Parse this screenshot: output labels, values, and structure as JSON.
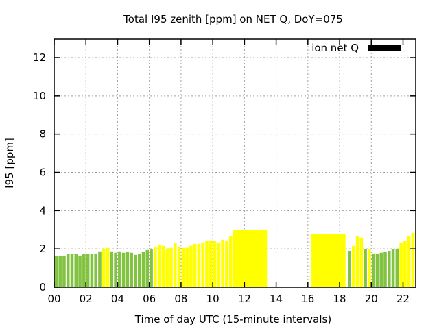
{
  "chart_data": {
    "type": "bar",
    "title": "Total I95 zenith [ppm] on NET Q, DoY=075",
    "xlabel": "Time of day UTC (15-minute intervals)",
    "ylabel": "I95 [ppm]",
    "xlim": [
      0,
      22.8
    ],
    "ylim": [
      0,
      13
    ],
    "xticks": [
      0,
      2,
      4,
      6,
      8,
      10,
      12,
      14,
      16,
      18,
      20,
      22
    ],
    "xtick_labels": [
      "00",
      "02",
      "04",
      "06",
      "08",
      "10",
      "12",
      "14",
      "16",
      "18",
      "20",
      "22"
    ],
    "yticks": [
      0,
      2,
      4,
      6,
      8,
      10,
      12
    ],
    "ytick_labels": [
      "0",
      "2",
      "4",
      "6",
      "8",
      "10",
      "12"
    ],
    "grid": true,
    "legend": {
      "label": "ion net Q",
      "placement": "top-right",
      "color": "#000000"
    },
    "colors": {
      "g": "#82c341",
      "y": "#ffff00"
    },
    "bars": [
      {
        "t": 0,
        "v": 1.62,
        "c": "g"
      },
      {
        "t": 0.25,
        "v": 1.62,
        "c": "g"
      },
      {
        "t": 0.5,
        "v": 1.65,
        "c": "g"
      },
      {
        "t": 0.75,
        "v": 1.72,
        "c": "g"
      },
      {
        "t": 1,
        "v": 1.72,
        "c": "g"
      },
      {
        "t": 1.25,
        "v": 1.72,
        "c": "g"
      },
      {
        "t": 1.5,
        "v": 1.65,
        "c": "g"
      },
      {
        "t": 1.75,
        "v": 1.72,
        "c": "g"
      },
      {
        "t": 2,
        "v": 1.72,
        "c": "g"
      },
      {
        "t": 2.25,
        "v": 1.72,
        "c": "g"
      },
      {
        "t": 2.5,
        "v": 1.76,
        "c": "g"
      },
      {
        "t": 2.75,
        "v": 1.87,
        "c": "g"
      },
      {
        "t": 3,
        "v": 2.01,
        "c": "y"
      },
      {
        "t": 3.25,
        "v": 2.05,
        "c": "y"
      },
      {
        "t": 3.5,
        "v": 1.87,
        "c": "g"
      },
      {
        "t": 3.75,
        "v": 1.8,
        "c": "g"
      },
      {
        "t": 4,
        "v": 1.87,
        "c": "g"
      },
      {
        "t": 4.25,
        "v": 1.8,
        "c": "g"
      },
      {
        "t": 4.5,
        "v": 1.83,
        "c": "g"
      },
      {
        "t": 4.75,
        "v": 1.8,
        "c": "g"
      },
      {
        "t": 5,
        "v": 1.69,
        "c": "g"
      },
      {
        "t": 5.25,
        "v": 1.72,
        "c": "g"
      },
      {
        "t": 5.5,
        "v": 1.83,
        "c": "g"
      },
      {
        "t": 5.75,
        "v": 1.94,
        "c": "g"
      },
      {
        "t": 6,
        "v": 1.98,
        "c": "g"
      },
      {
        "t": 6.25,
        "v": 2.08,
        "c": "y"
      },
      {
        "t": 6.5,
        "v": 2.19,
        "c": "y"
      },
      {
        "t": 6.75,
        "v": 2.16,
        "c": "y"
      },
      {
        "t": 7,
        "v": 2.01,
        "c": "y"
      },
      {
        "t": 7.25,
        "v": 2.05,
        "c": "y"
      },
      {
        "t": 7.5,
        "v": 2.3,
        "c": "y"
      },
      {
        "t": 7.75,
        "v": 2.08,
        "c": "y"
      },
      {
        "t": 8,
        "v": 2.05,
        "c": "y"
      },
      {
        "t": 8.25,
        "v": 2.05,
        "c": "y"
      },
      {
        "t": 8.5,
        "v": 2.16,
        "c": "y"
      },
      {
        "t": 8.75,
        "v": 2.26,
        "c": "y"
      },
      {
        "t": 9,
        "v": 2.26,
        "c": "y"
      },
      {
        "t": 9.25,
        "v": 2.34,
        "c": "y"
      },
      {
        "t": 9.5,
        "v": 2.44,
        "c": "y"
      },
      {
        "t": 9.75,
        "v": 2.44,
        "c": "y"
      },
      {
        "t": 10,
        "v": 2.41,
        "c": "y"
      },
      {
        "t": 10.25,
        "v": 2.3,
        "c": "y"
      },
      {
        "t": 10.5,
        "v": 2.48,
        "c": "y"
      },
      {
        "t": 10.75,
        "v": 2.44,
        "c": "y"
      },
      {
        "t": 11,
        "v": 2.66,
        "c": "y"
      },
      {
        "t": 11.25,
        "w": 2.2,
        "v": 2.98,
        "c": "y"
      },
      {
        "t": 16.2,
        "w": 2.2,
        "v": 2.77,
        "c": "y"
      },
      {
        "t": 18.5,
        "v": 1.9,
        "c": "g"
      },
      {
        "t": 18.75,
        "v": 2.16,
        "c": "y"
      },
      {
        "t": 19,
        "v": 2.69,
        "c": "y"
      },
      {
        "t": 19.25,
        "v": 2.59,
        "c": "y"
      },
      {
        "t": 19.5,
        "v": 1.98,
        "c": "g"
      },
      {
        "t": 19.75,
        "v": 2.01,
        "c": "y"
      },
      {
        "t": 20,
        "v": 1.76,
        "c": "g"
      },
      {
        "t": 20.25,
        "v": 1.72,
        "c": "g"
      },
      {
        "t": 20.5,
        "v": 1.8,
        "c": "g"
      },
      {
        "t": 20.75,
        "v": 1.83,
        "c": "g"
      },
      {
        "t": 21,
        "v": 1.9,
        "c": "g"
      },
      {
        "t": 21.25,
        "v": 1.98,
        "c": "g"
      },
      {
        "t": 21.5,
        "v": 1.98,
        "c": "g"
      },
      {
        "t": 21.75,
        "v": 2.3,
        "c": "y"
      },
      {
        "t": 22,
        "v": 2.41,
        "c": "y"
      },
      {
        "t": 22.25,
        "v": 2.69,
        "c": "y"
      },
      {
        "t": 22.5,
        "v": 2.84,
        "c": "y"
      },
      {
        "t": 22.75,
        "v": 2.91,
        "c": "y"
      }
    ]
  }
}
